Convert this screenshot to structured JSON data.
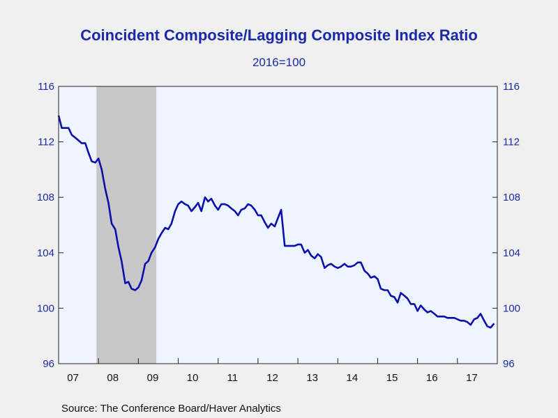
{
  "chart_data": {
    "type": "line",
    "title": "Coincident Composite/Lagging Composite Index Ratio",
    "subtitle": "2016=100",
    "source": "Source:  The Conference Board/Haver Analytics",
    "ylim": [
      96,
      116
    ],
    "yticks": [
      "96",
      "100",
      "104",
      "108",
      "112",
      "116"
    ],
    "xlim": [
      2007.0,
      2018.0
    ],
    "xtick_labels": [
      "07",
      "08",
      "09",
      "10",
      "11",
      "12",
      "13",
      "14",
      "15",
      "16",
      "17"
    ],
    "recession": {
      "start": 2007.95,
      "end": 2009.45
    },
    "colors": {
      "line": "#0a0fb0",
      "axis_text": "#1a2aa6",
      "plot_bg": "#eef5ff",
      "page_bg": "#f0f0f0",
      "recession": "#c8c8c8"
    },
    "series": [
      {
        "x": [
          2007.0,
          2007.08,
          2007.17,
          2007.25,
          2007.33,
          2007.42,
          2007.5,
          2007.58,
          2007.67,
          2007.75,
          2007.83,
          2007.92,
          2008.0,
          2008.08,
          2008.17,
          2008.25,
          2008.33,
          2008.42,
          2008.5,
          2008.58,
          2008.67,
          2008.75,
          2008.83,
          2008.92,
          2009.0,
          2009.08,
          2009.17,
          2009.25,
          2009.33,
          2009.42,
          2009.5,
          2009.58,
          2009.67,
          2009.75,
          2009.83,
          2009.92,
          2010.0,
          2010.08,
          2010.17,
          2010.25,
          2010.33,
          2010.42,
          2010.5,
          2010.58,
          2010.67,
          2010.75,
          2010.83,
          2010.92,
          2011.0,
          2011.08,
          2011.17,
          2011.25,
          2011.33,
          2011.42,
          2011.5,
          2011.58,
          2011.67,
          2011.75,
          2011.83,
          2011.92,
          2012.0,
          2012.08,
          2012.17,
          2012.25,
          2012.33,
          2012.42,
          2012.5,
          2012.58,
          2012.67,
          2012.75,
          2012.83,
          2012.92,
          2013.0,
          2013.08,
          2013.17,
          2013.25,
          2013.33,
          2013.42,
          2013.5,
          2013.58,
          2013.67,
          2013.75,
          2013.83,
          2013.92,
          2014.0,
          2014.08,
          2014.17,
          2014.25,
          2014.33,
          2014.42,
          2014.5,
          2014.58,
          2014.67,
          2014.75,
          2014.83,
          2014.92,
          2015.0,
          2015.08,
          2015.17,
          2015.25,
          2015.33,
          2015.42,
          2015.5,
          2015.58,
          2015.67,
          2015.75,
          2015.83,
          2015.92,
          2016.0,
          2016.08,
          2016.17,
          2016.25,
          2016.33,
          2016.42,
          2016.5,
          2016.58,
          2016.67,
          2016.75,
          2016.83,
          2016.92,
          2017.0,
          2017.08,
          2017.17,
          2017.25,
          2017.33,
          2017.42,
          2017.5,
          2017.58,
          2017.67,
          2017.75,
          2017.83,
          2017.92
        ],
        "values": [
          113.9,
          113.0,
          113.0,
          113.0,
          112.5,
          112.3,
          112.1,
          111.9,
          111.9,
          111.2,
          110.6,
          110.5,
          110.8,
          110.0,
          108.6,
          107.6,
          106.1,
          105.7,
          104.4,
          103.4,
          101.8,
          101.9,
          101.4,
          101.3,
          101.5,
          102.0,
          103.2,
          103.4,
          104.0,
          104.4,
          105.0,
          105.4,
          105.8,
          105.7,
          106.1,
          107.0,
          107.5,
          107.7,
          107.5,
          107.4,
          107.0,
          107.3,
          107.6,
          107.0,
          108.0,
          107.7,
          107.9,
          107.4,
          107.1,
          107.5,
          107.5,
          107.4,
          107.2,
          107.0,
          106.7,
          107.1,
          107.2,
          107.5,
          107.4,
          107.1,
          106.7,
          106.7,
          106.2,
          105.8,
          106.1,
          105.9,
          106.5,
          107.1,
          104.5,
          104.5,
          104.5,
          104.5,
          104.6,
          104.6,
          104.0,
          104.2,
          103.8,
          103.6,
          103.9,
          103.7,
          102.9,
          103.1,
          103.2,
          103.0,
          102.9,
          103.0,
          103.2,
          103.0,
          103.0,
          103.1,
          103.3,
          103.3,
          102.7,
          102.5,
          102.2,
          102.3,
          102.1,
          101.4,
          101.3,
          101.3,
          100.9,
          100.8,
          100.4,
          101.1,
          100.9,
          100.7,
          100.3,
          100.3,
          99.8,
          100.2,
          99.9,
          99.7,
          99.8,
          99.6,
          99.4,
          99.4,
          99.4,
          99.3,
          99.3,
          99.3,
          99.2,
          99.1,
          99.1,
          99.0,
          98.8,
          99.2,
          99.3,
          99.6,
          99.1,
          98.7,
          98.6,
          98.9
        ]
      }
    ]
  }
}
